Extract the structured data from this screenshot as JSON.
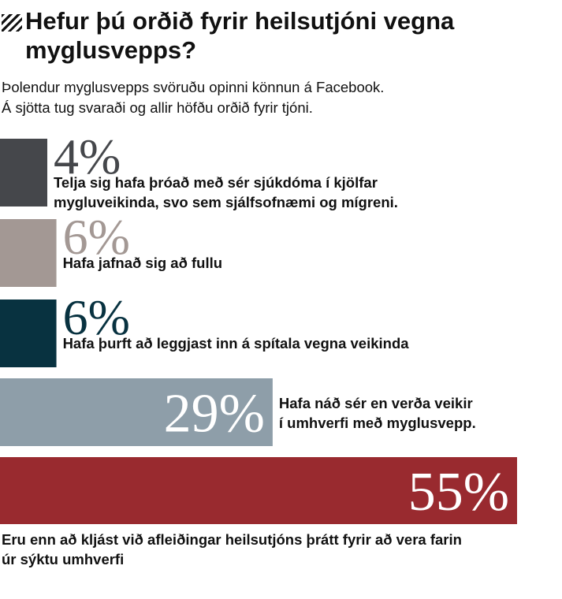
{
  "title": "Hefur þú orðið fyrir heilsutjóni vegna myglusvepps?",
  "subtitle_lines": [
    "Þolendur myglusvepps svöruðu opinni könnun á Facebook.",
    "Á sjötta tug svaraði og allir höfðu orðið fyrir tjóni."
  ],
  "chart_data": {
    "type": "bar",
    "orientation": "horizontal",
    "unit": "%",
    "categories": [
      "Telja sig hafa þróað með sér sjúkdóma í kjölfar mygluveikinda, svo sem sjálfsofnæmi og mígreni.",
      "Hafa jafnað sig að fullu",
      "Hafa þurft að leggjast inn á spítala vegna veikinda",
      "Hafa náð sér en verða veikir í umhverfi með myglusvepp.",
      "Eru enn að kljást við afleiðingar heilsutjóns þrátt fyrir að vera farin úr sýktu umhverfi"
    ],
    "values": [
      4,
      6,
      6,
      29,
      55
    ],
    "value_labels": [
      "4%",
      "6%",
      "6%",
      "29%",
      "55%"
    ],
    "label_lines": [
      [
        "Telja sig hafa þróað með sér sjúkdóma í kjölfar",
        "mygluveikinda, svo sem sjálfsofnæmi og mígreni."
      ],
      [
        "Hafa jafnað sig að fullu"
      ],
      [
        "Hafa þurft að leggjast inn á spítala vegna veikinda"
      ],
      [
        "Hafa náð sér en verða veikir",
        "í umhverfi með myglusvepp."
      ],
      [
        "Eru enn að kljást við afleiðingar heilsutjóns þrátt fyrir að vera farin",
        "úr sýktu umhverfi"
      ]
    ],
    "colors": [
      "#45474b",
      "#a39894",
      "#083240",
      "#8e9ea9",
      "#992a2f"
    ],
    "value_label_colors": [
      "#45474b",
      "#a39894",
      "#083240",
      "#ffffff",
      "#ffffff"
    ],
    "xlim": [
      0,
      55
    ],
    "grid": false,
    "legend": "none"
  }
}
